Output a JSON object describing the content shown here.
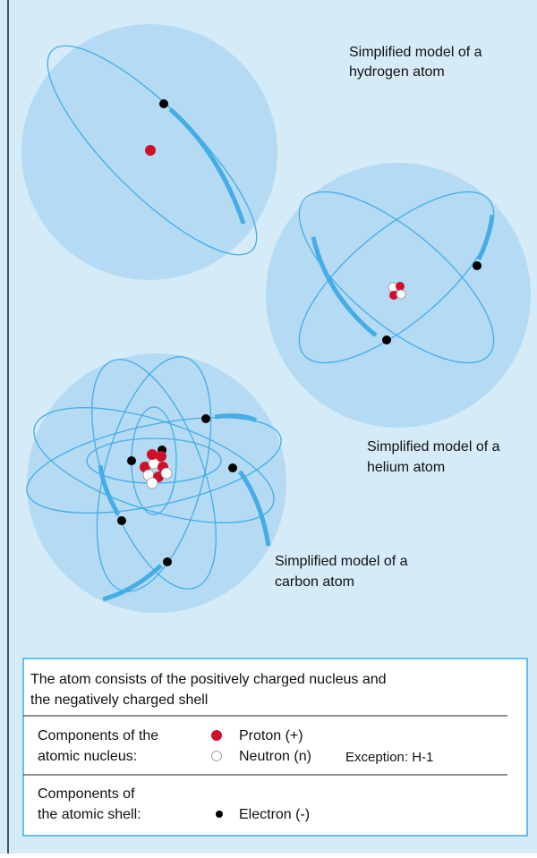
{
  "hydrogen": {
    "label": [
      "Simplified model of a",
      "hydrogen atom"
    ]
  },
  "helium": {
    "label": [
      "Simplified model of a",
      "helium atom"
    ]
  },
  "carbon": {
    "label": [
      "Simplified model of a",
      "carbon atom"
    ]
  },
  "legend": {
    "summary": [
      "The atom consists of the positively charged nucleus and",
      "the negatively charged shell"
    ],
    "nucleus": {
      "label": [
        "Components of the",
        "atomic nucleus:"
      ],
      "proton": "Proton (+)",
      "neutron": "Neutron (n)",
      "exception": "Exception: H-1"
    },
    "shell": {
      "label": [
        "Components of",
        "the atomic shell:"
      ],
      "electron": "Electron (-)"
    }
  }
}
